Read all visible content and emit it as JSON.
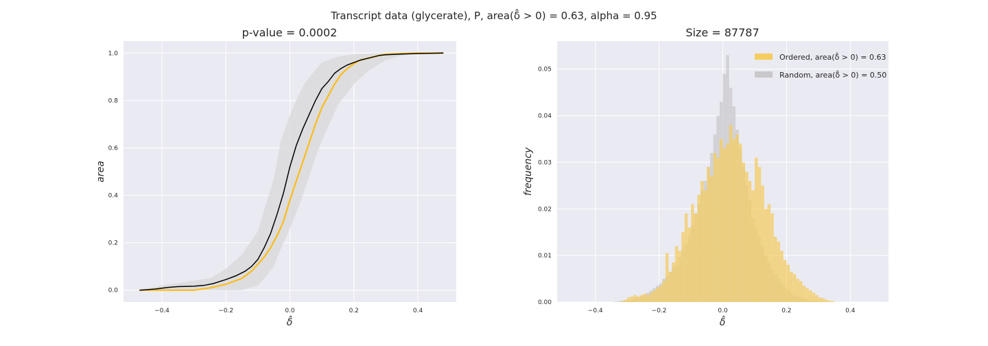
{
  "figure": {
    "suptitle": "Transcript data (glycerate), P, area(δ̂ > 0) = 0.63, alpha = 0.95",
    "colors": {
      "background": "#eaeaf2",
      "ordered": "#fbbc19",
      "random": "#000000",
      "band": "#d9d9d9",
      "hist_ordered": "#f5cc5e",
      "hist_random": "#c9c9cc"
    }
  },
  "chart_data": [
    {
      "type": "line",
      "title": "p-value = 0.0002",
      "xlabel": "δ̂",
      "ylabel": "area",
      "xlim": [
        -0.52,
        0.52
      ],
      "ylim": [
        -0.05,
        1.05
      ],
      "xticks": [
        -0.4,
        -0.2,
        0.0,
        0.2,
        0.4
      ],
      "xtick_labels": [
        "−0.4",
        "−0.2",
        "0.0",
        "0.2",
        "0.4"
      ],
      "yticks": [
        0.0,
        0.2,
        0.4,
        0.6,
        0.8,
        1.0
      ],
      "ytick_labels": [
        "0.0",
        "0.2",
        "0.4",
        "0.6",
        "0.8",
        "1.0"
      ],
      "grid": true,
      "band": {
        "x": [
          -0.47,
          -0.4,
          -0.35,
          -0.3,
          -0.25,
          -0.2,
          -0.15,
          -0.1,
          -0.08,
          -0.05,
          -0.03,
          0.0,
          0.03,
          0.05,
          0.08,
          0.1,
          0.13,
          0.15,
          0.2,
          0.25,
          0.3,
          0.35,
          0.4,
          0.48
        ],
        "upper": [
          0.0,
          0.02,
          0.03,
          0.04,
          0.05,
          0.09,
          0.15,
          0.25,
          0.34,
          0.47,
          0.62,
          0.74,
          0.83,
          0.88,
          0.93,
          0.96,
          0.975,
          0.985,
          0.995,
          0.998,
          1.0,
          1.0,
          1.0,
          1.0
        ],
        "lower": [
          0.0,
          0.0,
          0.0,
          0.0,
          0.0,
          0.0,
          0.0,
          0.02,
          0.05,
          0.1,
          0.17,
          0.26,
          0.36,
          0.44,
          0.56,
          0.63,
          0.72,
          0.78,
          0.87,
          0.93,
          0.97,
          0.99,
          1.0,
          1.0
        ]
      },
      "series": [
        {
          "name": "Ordered",
          "x": [
            -0.47,
            -0.4,
            -0.35,
            -0.3,
            -0.25,
            -0.2,
            -0.15,
            -0.12,
            -0.1,
            -0.08,
            -0.06,
            -0.04,
            -0.02,
            0.0,
            0.02,
            0.04,
            0.06,
            0.08,
            0.1,
            0.12,
            0.14,
            0.16,
            0.18,
            0.2,
            0.22,
            0.25,
            0.28,
            0.3,
            0.35,
            0.4,
            0.48
          ],
          "y": [
            0.0,
            0.0,
            0.0,
            0.0,
            0.01,
            0.025,
            0.05,
            0.08,
            0.11,
            0.14,
            0.18,
            0.23,
            0.29,
            0.38,
            0.46,
            0.54,
            0.62,
            0.7,
            0.77,
            0.82,
            0.87,
            0.91,
            0.935,
            0.955,
            0.97,
            0.98,
            0.99,
            0.995,
            0.998,
            1.0,
            1.0
          ]
        },
        {
          "name": "Random",
          "x": [
            -0.47,
            -0.42,
            -0.38,
            -0.35,
            -0.3,
            -0.27,
            -0.24,
            -0.2,
            -0.17,
            -0.14,
            -0.12,
            -0.1,
            -0.08,
            -0.06,
            -0.04,
            -0.02,
            0.0,
            0.02,
            0.04,
            0.06,
            0.08,
            0.1,
            0.12,
            0.14,
            0.16,
            0.18,
            0.2,
            0.22,
            0.25,
            0.28,
            0.3,
            0.35,
            0.4,
            0.48
          ],
          "y": [
            0.0,
            0.005,
            0.012,
            0.015,
            0.017,
            0.02,
            0.028,
            0.045,
            0.06,
            0.08,
            0.1,
            0.13,
            0.18,
            0.24,
            0.32,
            0.41,
            0.52,
            0.61,
            0.68,
            0.74,
            0.8,
            0.85,
            0.88,
            0.915,
            0.935,
            0.95,
            0.96,
            0.97,
            0.98,
            0.99,
            0.993,
            0.996,
            0.998,
            1.0
          ]
        }
      ]
    },
    {
      "type": "bar",
      "title": "Size = 87787",
      "xlabel": "δ̂",
      "ylabel": "frequency",
      "xlim": [
        -0.52,
        0.52
      ],
      "ylim": [
        0,
        0.056
      ],
      "xticks": [
        -0.4,
        -0.2,
        0.0,
        0.2,
        0.4
      ],
      "xtick_labels": [
        "−0.4",
        "−0.2",
        "0.0",
        "0.2",
        "0.4"
      ],
      "yticks": [
        0.0,
        0.01,
        0.02,
        0.03,
        0.04,
        0.05
      ],
      "ytick_labels": [
        "0.00",
        "0.01",
        "0.02",
        "0.03",
        "0.04",
        "0.05"
      ],
      "grid": true,
      "legend_position": "top-right",
      "bin_start": -0.5,
      "bin_width": 0.01,
      "series": [
        {
          "name": "Ordered, area(δ̂ > 0) = 0.63",
          "values": [
            0,
            0,
            0,
            0,
            0,
            0,
            0,
            0,
            0,
            0,
            0,
            0,
            0,
            0,
            0,
            0,
            0,
            0,
            0.0002,
            0.0005,
            0.001,
            0.0012,
            0.0015,
            0.0012,
            0.0015,
            0.0018,
            0.0015,
            0.002,
            0.0025,
            0.003,
            0.0035,
            0.0045,
            0.0105,
            0.0065,
            0.0085,
            0.012,
            0.011,
            0.015,
            0.019,
            0.016,
            0.021,
            0.019,
            0.023,
            0.026,
            0.024,
            0.029,
            0.027,
            0.032,
            0.031,
            0.035,
            0.033,
            0.034,
            0.038,
            0.035,
            0.036,
            0.034,
            0.03,
            0.028,
            0.026,
            0.024,
            0.031,
            0.029,
            0.025,
            0.02,
            0.021,
            0.019,
            0.014,
            0.013,
            0.011,
            0.009,
            0.008,
            0.0065,
            0.006,
            0.005,
            0.0045,
            0.0035,
            0.003,
            0.0025,
            0.002,
            0.0015,
            0.001,
            0.0008,
            0.0005,
            0.0003,
            0.0002,
            0,
            0,
            0,
            0,
            0,
            0,
            0,
            0,
            0,
            0,
            0,
            0,
            0,
            0,
            0
          ]
        },
        {
          "name": "Random, area(δ̂ > 0) = 0.50",
          "values": [
            0,
            0,
            0,
            0,
            0,
            0,
            0,
            0,
            0,
            0,
            0,
            0,
            0,
            0,
            0,
            0,
            0.0001,
            0.0002,
            0.0003,
            0.0004,
            0.0005,
            0.0006,
            0.0008,
            0.001,
            0.0012,
            0.0015,
            0.002,
            0.0025,
            0.003,
            0.0035,
            0.004,
            0.005,
            0.0055,
            0.0065,
            0.0075,
            0.008,
            0.0095,
            0.011,
            0.0125,
            0.014,
            0.0165,
            0.019,
            0.021,
            0.024,
            0.026,
            0.029,
            0.032,
            0.036,
            0.04,
            0.043,
            0.049,
            0.053,
            0.046,
            0.042,
            0.037,
            0.033,
            0.029,
            0.025,
            0.022,
            0.018,
            0.016,
            0.014,
            0.012,
            0.01,
            0.0085,
            0.007,
            0.006,
            0.005,
            0.004,
            0.0032,
            0.0026,
            0.002,
            0.0015,
            0.0012,
            0.001,
            0.0008,
            0.0006,
            0.0004,
            0.0003,
            0.0002,
            0.0001,
            0.0001,
            0,
            0,
            0,
            0,
            0,
            0,
            0,
            0,
            0,
            0,
            0,
            0,
            0,
            0,
            0,
            0,
            0,
            0
          ]
        }
      ]
    }
  ]
}
